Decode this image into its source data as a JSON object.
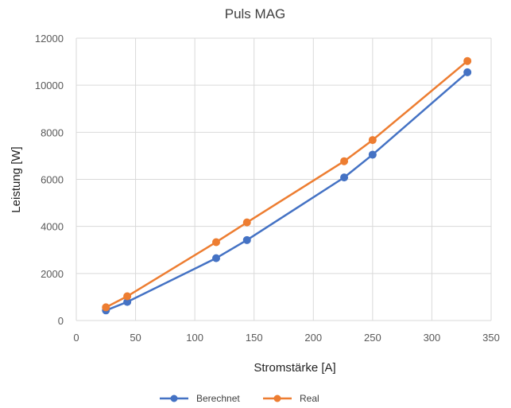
{
  "chart_data": {
    "type": "line",
    "title": "Puls MAG",
    "xlabel": "Stromstärke [A]",
    "ylabel": "Leistung [W]",
    "xlim": [
      0,
      350
    ],
    "ylim": [
      0,
      12000
    ],
    "x_ticks": [
      "0",
      "50",
      "100",
      "150",
      "200",
      "250",
      "300",
      "350"
    ],
    "y_ticks": [
      "0",
      "2000",
      "4000",
      "6000",
      "8000",
      "10000",
      "12000"
    ],
    "grid": true,
    "legend_position": "bottom",
    "series": [
      {
        "name": "Berechnet",
        "color": "#4472C4",
        "points": [
          {
            "x": 25,
            "y": 430
          },
          {
            "x": 43,
            "y": 790
          },
          {
            "x": 118,
            "y": 2650
          },
          {
            "x": 144,
            "y": 3420
          },
          {
            "x": 226,
            "y": 6080
          },
          {
            "x": 250,
            "y": 7050
          },
          {
            "x": 330,
            "y": 10550
          }
        ]
      },
      {
        "name": "Real",
        "color": "#ED7D31",
        "points": [
          {
            "x": 25,
            "y": 560
          },
          {
            "x": 43,
            "y": 1030
          },
          {
            "x": 118,
            "y": 3330
          },
          {
            "x": 144,
            "y": 4170
          },
          {
            "x": 226,
            "y": 6770
          },
          {
            "x": 250,
            "y": 7670
          },
          {
            "x": 330,
            "y": 11030
          }
        ]
      }
    ]
  }
}
